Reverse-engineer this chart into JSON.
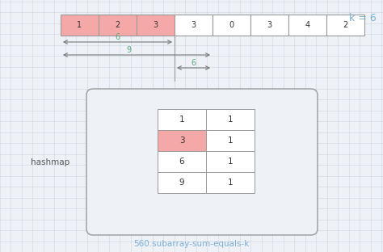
{
  "bg_color": "#eef2f7",
  "grid_color": "#cdd5e0",
  "array_values": [
    1,
    2,
    3,
    3,
    0,
    3,
    4,
    2
  ],
  "array_highlight": [
    0,
    1,
    2
  ],
  "highlight_color": "#f4a9a8",
  "normal_color": "#ffffff",
  "border_color": "#999999",
  "k_label": "k = 6",
  "k_color": "#7bafd4",
  "arrow_color": "#777777",
  "arrow_label_color": "#5aaa7a",
  "hashmap_data": [
    {
      "key": "1",
      "val": "1",
      "highlight": false
    },
    {
      "key": "3",
      "val": "1",
      "highlight": true
    },
    {
      "key": "6",
      "val": "1",
      "highlight": false
    },
    {
      "key": "9",
      "val": "1",
      "highlight": false
    }
  ],
  "hashmap_label": "hashmap",
  "hashmap_label_color": "#555555",
  "footer_text": "560.subarray-sum-equals-k",
  "footer_color": "#7bafd4",
  "fig_w": 4.74,
  "fig_h": 3.12,
  "dpi": 100
}
